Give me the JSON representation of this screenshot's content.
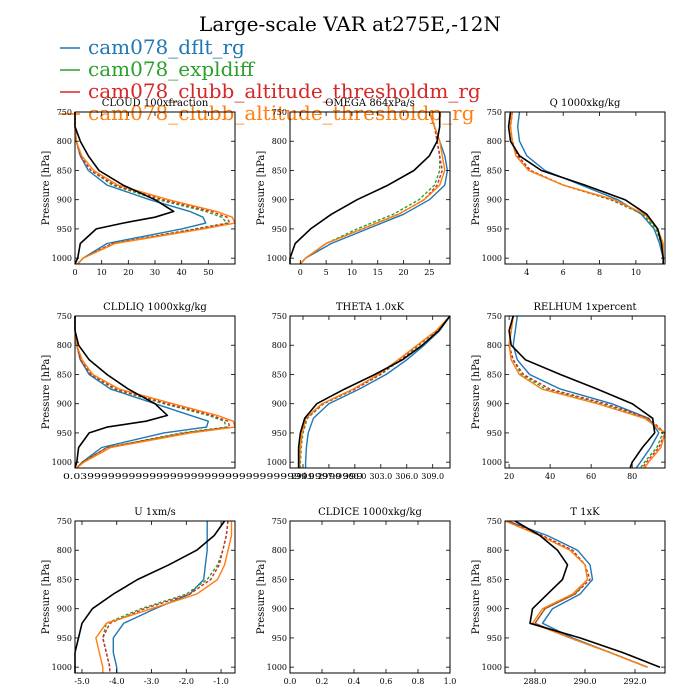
{
  "figure": {
    "title": "Large-scale VAR at275E,-12N",
    "legend": [
      {
        "name": "cam078_dflt_rg",
        "color": "#1f77b4"
      },
      {
        "name": "cam078_expldiff",
        "color": "#2ca02c"
      },
      {
        "name": "cam078_clubb_altitude_thresholdm_rg",
        "color": "#d62728"
      },
      {
        "name": "cam078_clubb_altitude_thresholdp_rg",
        "color": "#ff7f0e"
      }
    ],
    "obs_color": "#000000",
    "legend_placement": "top-left"
  },
  "chart_data": [
    {
      "type": "line",
      "title": "CLOUD 100xfraction",
      "ylabel": "Pressure [hPa]",
      "xlim": [
        0,
        60
      ],
      "ylim": [
        750,
        1010
      ],
      "y_inverted": true,
      "xticks": [
        0,
        10,
        20,
        30,
        40,
        50
      ],
      "xtick_labels": [
        "0",
        "10",
        "20",
        "30",
        "40",
        "50"
      ],
      "yticks": [
        750,
        800,
        850,
        900,
        950,
        1000
      ],
      "ytick_labels": [
        "750",
        "800",
        "850",
        "900",
        "950",
        "1000"
      ],
      "y": [
        750,
        775,
        800,
        825,
        850,
        875,
        900,
        920,
        930,
        940,
        950,
        975,
        1000,
        1010
      ],
      "series": [
        {
          "values": [
            0,
            0,
            0.5,
            2,
            5,
            12,
            28,
            43,
            48,
            49,
            40,
            12,
            3,
            1
          ]
        },
        {
          "values": [
            0,
            0,
            0.5,
            2,
            6,
            14,
            31,
            49,
            55,
            57,
            45,
            14,
            3,
            1
          ]
        },
        {
          "values": [
            0,
            0,
            0.5,
            2,
            6,
            15,
            33,
            51,
            57,
            58,
            46,
            14,
            3,
            1
          ]
        },
        {
          "values": [
            0,
            0,
            0.5,
            2.5,
            7,
            16,
            35,
            53,
            59,
            60,
            48,
            15,
            3,
            1
          ]
        },
        {
          "values": [
            0,
            0,
            2,
            5,
            9,
            18,
            30,
            37,
            30,
            18,
            8,
            2,
            1,
            0
          ],
          "obs": true
        }
      ]
    },
    {
      "type": "line",
      "title": "OMEGA 864xPa/s",
      "ylabel": "Pressure [hPa]",
      "xlim": [
        -2,
        29
      ],
      "ylim": [
        750,
        1010
      ],
      "y_inverted": true,
      "xticks": [
        0,
        5,
        10,
        15,
        20,
        25
      ],
      "xtick_labels": [
        "0",
        "5",
        "10",
        "15",
        "20",
        "25"
      ],
      "yticks": [
        750,
        800,
        850,
        900,
        950,
        1000
      ],
      "ytick_labels": [
        "750",
        "800",
        "850",
        "900",
        "950",
        "1000"
      ],
      "y": [
        750,
        775,
        800,
        825,
        850,
        875,
        900,
        925,
        950,
        975,
        1000,
        1010
      ],
      "series": [
        {
          "values": [
            25,
            26,
            27,
            28,
            28.5,
            28,
            25,
            20,
            13,
            6,
            1,
            0
          ]
        },
        {
          "values": [
            25,
            26,
            26.5,
            27,
            27,
            26,
            23,
            18,
            11,
            5,
            1,
            0
          ]
        },
        {
          "values": [
            25,
            26,
            26.5,
            27,
            27.5,
            26.5,
            24,
            19,
            12,
            5,
            1,
            0
          ]
        },
        {
          "values": [
            25,
            26,
            27,
            27.5,
            28,
            27,
            24,
            19,
            12,
            5,
            1,
            0
          ]
        },
        {
          "values": [
            27,
            27,
            26.5,
            25,
            22,
            17,
            11,
            6,
            2,
            -1,
            -2,
            -2
          ],
          "obs": true
        }
      ]
    },
    {
      "type": "line",
      "title": "Q 1000xkg/kg",
      "ylabel": "Pressure [hPa]",
      "xlim": [
        2.8,
        11.6
      ],
      "ylim": [
        750,
        1010
      ],
      "y_inverted": true,
      "xticks": [
        4,
        6,
        8,
        10
      ],
      "xtick_labels": [
        "4",
        "6",
        "8",
        "10"
      ],
      "yticks": [
        750,
        800,
        850,
        900,
        950,
        1000
      ],
      "ytick_labels": [
        "750",
        "800",
        "850",
        "900",
        "950",
        "1000"
      ],
      "y": [
        750,
        775,
        800,
        825,
        850,
        875,
        900,
        925,
        950,
        975,
        1000,
        1010
      ],
      "series": [
        {
          "values": [
            3.6,
            3.5,
            3.6,
            4,
            5,
            7,
            9,
            10.3,
            11,
            11.3,
            11.5,
            11.5
          ]
        },
        {
          "values": [
            3.2,
            3.1,
            3.2,
            3.5,
            4.2,
            6,
            8.6,
            10.4,
            11.1,
            11.4,
            11.5,
            11.5
          ]
        },
        {
          "values": [
            3.2,
            3.1,
            3.2,
            3.5,
            4.2,
            6,
            8.7,
            10.5,
            11.2,
            11.4,
            11.5,
            11.5
          ]
        },
        {
          "values": [
            3.2,
            3.1,
            3.2,
            3.4,
            4.1,
            6,
            8.8,
            10.5,
            11.2,
            11.5,
            11.5,
            11.5
          ]
        },
        {
          "values": [
            3.1,
            3,
            3.1,
            3.6,
            4.8,
            7.2,
            9.4,
            10.6,
            11.2,
            11.4,
            11.5,
            11.5
          ],
          "obs": true
        }
      ]
    },
    {
      "type": "line",
      "title": "CLDLIQ 1000xkg/kg",
      "ylabel": "Pressure [hPa]",
      "xlim": [
        0,
        0.09
      ],
      "ylim": [
        750,
        1010
      ],
      "y_inverted": true,
      "xticks": [],
      "xtick_labels": [],
      "xtick_overflow_label": "0.039999999999999999999999999999999999999999",
      "yticks": [
        750,
        800,
        850,
        900,
        950,
        1000
      ],
      "ytick_labels": [
        "750",
        "800",
        "850",
        "900",
        "950",
        "1000"
      ],
      "y": [
        750,
        775,
        800,
        825,
        850,
        875,
        900,
        920,
        930,
        940,
        950,
        975,
        1000,
        1010
      ],
      "series": [
        {
          "values": [
            0,
            0,
            0.001,
            0.003,
            0.008,
            0.02,
            0.045,
            0.065,
            0.075,
            0.074,
            0.05,
            0.015,
            0.004,
            0.001
          ]
        },
        {
          "values": [
            0,
            0,
            0.001,
            0.003,
            0.009,
            0.022,
            0.05,
            0.075,
            0.084,
            0.085,
            0.06,
            0.018,
            0.004,
            0.001
          ]
        },
        {
          "values": [
            0,
            0,
            0.001,
            0.003,
            0.009,
            0.023,
            0.052,
            0.077,
            0.086,
            0.087,
            0.062,
            0.018,
            0.004,
            0.001
          ]
        },
        {
          "values": [
            0,
            0,
            0.001,
            0.004,
            0.01,
            0.025,
            0.055,
            0.08,
            0.089,
            0.09,
            0.065,
            0.02,
            0.005,
            0.001
          ]
        },
        {
          "values": [
            0,
            0,
            0.002,
            0.008,
            0.018,
            0.03,
            0.045,
            0.052,
            0.04,
            0.018,
            0.008,
            0.002,
            0.001,
            0
          ],
          "obs": true
        }
      ]
    },
    {
      "type": "line",
      "title": "THETA 1.0xK",
      "ylabel": "",
      "xlim": [
        292.5,
        311
      ],
      "ylim": [
        750,
        1010
      ],
      "y_inverted": true,
      "xticks": [
        294,
        297,
        300,
        303,
        306,
        309
      ],
      "xtick_labels": [
        "294.0",
        "297.0",
        "300.0",
        "303.0",
        "306.0",
        "309.0"
      ],
      "yticks": [
        750,
        800,
        850,
        900,
        950,
        1000
      ],
      "ytick_labels": [
        "750",
        "800",
        "850",
        "900",
        "950",
        "1000"
      ],
      "y": [
        750,
        775,
        800,
        825,
        850,
        875,
        900,
        925,
        950,
        975,
        1000,
        1010
      ],
      "series": [
        {
          "values": [
            311,
            309.8,
            308,
            306,
            303.6,
            300.5,
            297,
            295.2,
            294.6,
            294.4,
            294.3,
            294.3
          ]
        },
        {
          "values": [
            311,
            309.5,
            307.4,
            305.3,
            303,
            300,
            296.4,
            294.5,
            294,
            293.8,
            293.7,
            293.7
          ]
        },
        {
          "values": [
            311,
            309.5,
            307.3,
            305.2,
            302.9,
            300,
            296.3,
            294.4,
            293.9,
            293.7,
            293.6,
            293.6
          ]
        },
        {
          "values": [
            311,
            309.4,
            307.2,
            305,
            302.7,
            299.8,
            296.2,
            294.3,
            293.9,
            293.7,
            293.6,
            293.6
          ]
        },
        {
          "values": [
            311,
            309.7,
            307.8,
            305.5,
            302.3,
            298.8,
            295.6,
            294.2,
            293.7,
            293.5,
            293.5,
            293.5
          ],
          "obs": true
        }
      ]
    },
    {
      "type": "line",
      "title": "RELHUM 1xpercent",
      "ylabel": "Pressure [hPa]",
      "xlim": [
        18,
        96
      ],
      "ylim": [
        750,
        1010
      ],
      "y_inverted": true,
      "xticks": [
        20,
        40,
        60,
        80
      ],
      "xtick_labels": [
        "20",
        "40",
        "60",
        "80"
      ],
      "yticks": [
        750,
        800,
        850,
        900,
        950,
        1000
      ],
      "ytick_labels": [
        "750",
        "800",
        "850",
        "900",
        "950",
        "1000"
      ],
      "y": [
        750,
        775,
        800,
        825,
        850,
        875,
        900,
        925,
        950,
        975,
        1000,
        1010
      ],
      "series": [
        {
          "values": [
            24,
            23,
            22,
            24,
            30,
            45,
            70,
            88,
            93,
            89,
            84,
            82
          ]
        },
        {
          "values": [
            22,
            21,
            20,
            22,
            26,
            38,
            65,
            87,
            95,
            92,
            86,
            84
          ]
        },
        {
          "values": [
            22,
            21,
            20,
            22,
            27,
            40,
            67,
            88,
            96,
            93,
            87,
            85
          ]
        },
        {
          "values": [
            22,
            21,
            20,
            21,
            25,
            36,
            63,
            86,
            96,
            94,
            88,
            86
          ]
        },
        {
          "values": [
            22,
            20,
            21,
            28,
            45,
            63,
            80,
            90,
            91,
            85,
            80,
            79
          ],
          "obs": true
        }
      ]
    },
    {
      "type": "line",
      "title": "U 1xm/s",
      "ylabel": "Pressure [hPa]",
      "xlim": [
        -5.2,
        -0.6
      ],
      "ylim": [
        750,
        1010
      ],
      "y_inverted": true,
      "xticks": [
        -5,
        -4,
        -3,
        -2,
        -1
      ],
      "xtick_labels": [
        "-5.0",
        "-4.0",
        "-3.0",
        "-2.0",
        "-1.0"
      ],
      "yticks": [
        750,
        800,
        850,
        900,
        950,
        1000
      ],
      "ytick_labels": [
        "750",
        "800",
        "850",
        "900",
        "950",
        "1000"
      ],
      "y": [
        750,
        775,
        800,
        825,
        850,
        875,
        900,
        925,
        950,
        975,
        1000,
        1010
      ],
      "series": [
        {
          "values": [
            -1.4,
            -1.4,
            -1.4,
            -1.45,
            -1.5,
            -1.9,
            -2.9,
            -3.8,
            -4.1,
            -4.1,
            -4,
            -4
          ]
        },
        {
          "values": [
            -0.8,
            -0.85,
            -0.95,
            -1.1,
            -1.4,
            -2,
            -3.3,
            -4.3,
            -4.4,
            -4.3,
            -4.2,
            -4.2
          ]
        },
        {
          "values": [
            -0.8,
            -0.85,
            -0.95,
            -1.05,
            -1.3,
            -1.9,
            -3.2,
            -4.2,
            -4.4,
            -4.3,
            -4.2,
            -4.2
          ]
        },
        {
          "values": [
            -0.7,
            -0.7,
            -0.8,
            -0.9,
            -1.1,
            -1.7,
            -3,
            -4.3,
            -4.6,
            -4.5,
            -4.4,
            -4.4
          ]
        },
        {
          "values": [
            -0.9,
            -1.2,
            -1.7,
            -2.5,
            -3.4,
            -4.1,
            -4.7,
            -5,
            -5.1,
            -5.2,
            -5.2,
            -5.2
          ],
          "obs": true
        }
      ]
    },
    {
      "type": "line",
      "title": "CLDICE 1000xkg/kg",
      "ylabel": "Pressure [hPa]",
      "xlim": [
        0,
        1
      ],
      "ylim": [
        750,
        1010
      ],
      "y_inverted": true,
      "xticks": [
        0,
        0.2,
        0.4,
        0.6,
        0.8,
        1.0
      ],
      "xtick_labels": [
        "0.0",
        "0.2",
        "0.4",
        "0.6",
        "0.8",
        "1.0"
      ],
      "yticks": [
        750,
        800,
        850,
        900,
        950,
        1000
      ],
      "ytick_labels": [
        "750",
        "800",
        "850",
        "900",
        "950",
        "1000"
      ],
      "y": [],
      "series": []
    },
    {
      "type": "line",
      "title": "T 1xK",
      "ylabel": "Pressure [hPa]",
      "xlim": [
        286.8,
        293.2
      ],
      "ylim": [
        750,
        1010
      ],
      "y_inverted": true,
      "xticks": [
        288,
        290,
        292
      ],
      "xtick_labels": [
        "288.0",
        "290.0",
        "292.0"
      ],
      "yticks": [
        750,
        800,
        850,
        900,
        950,
        1000
      ],
      "ytick_labels": [
        "750",
        "800",
        "850",
        "900",
        "950",
        "1000"
      ],
      "y": [
        750,
        775,
        800,
        825,
        850,
        875,
        900,
        925,
        950,
        975,
        1000
      ],
      "series": [
        {
          "values": [
            286.9,
            288.5,
            289.7,
            290.2,
            290.3,
            289.8,
            288.7,
            288.3,
            289.5,
            291,
            292.5
          ]
        },
        {
          "values": [
            286.9,
            288.3,
            289.5,
            290,
            290.1,
            289.6,
            288.4,
            288,
            289.4,
            291,
            292.5
          ]
        },
        {
          "values": [
            286.9,
            288.3,
            289.5,
            290,
            290.2,
            289.6,
            288.4,
            288,
            289.4,
            291,
            292.5
          ]
        },
        {
          "values": [
            286.8,
            288.2,
            289.4,
            290,
            290.1,
            289.5,
            288.3,
            287.9,
            289.4,
            291,
            292.5
          ]
        },
        {
          "values": [
            287.2,
            288.2,
            288.9,
            289.3,
            289.1,
            288.5,
            287.9,
            287.8,
            289.8,
            291.5,
            293
          ],
          "obs": true
        }
      ]
    }
  ]
}
